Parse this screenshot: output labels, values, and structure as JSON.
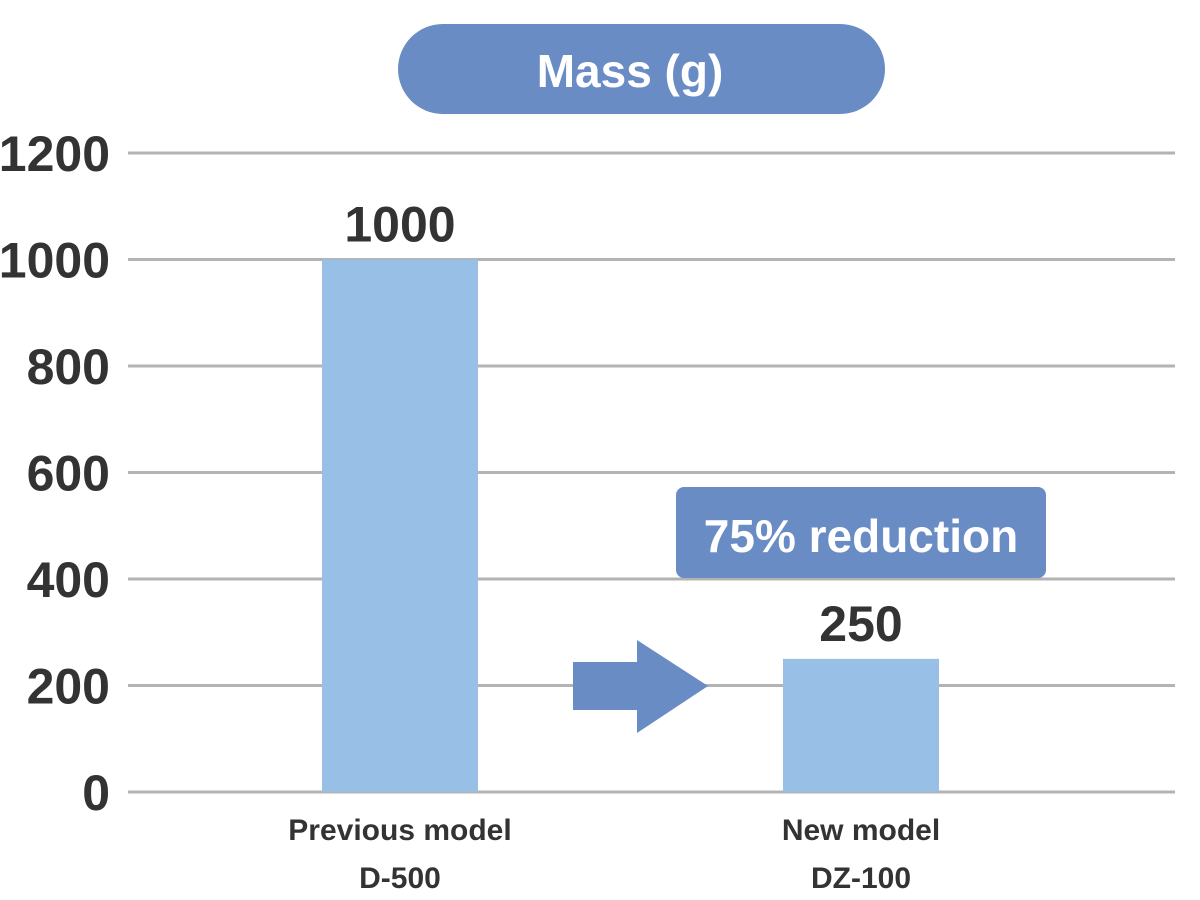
{
  "chart_data": {
    "type": "bar",
    "title": "Mass (g)",
    "categories": [
      [
        "Previous model",
        "D-500"
      ],
      [
        "New model",
        "DZ-100"
      ]
    ],
    "values": [
      1000,
      250
    ],
    "data_labels": [
      "1000",
      "250"
    ],
    "ylim": [
      0,
      1200
    ],
    "yticks": [
      "0",
      "200",
      "400",
      "600",
      "800",
      "1000",
      "1200"
    ],
    "grid": true,
    "annotation": "75% reduction",
    "colors": {
      "bar": "#98c0e6",
      "accent": "#6a8cc5",
      "grid": "#b3b3b3",
      "text": "#333333"
    }
  }
}
